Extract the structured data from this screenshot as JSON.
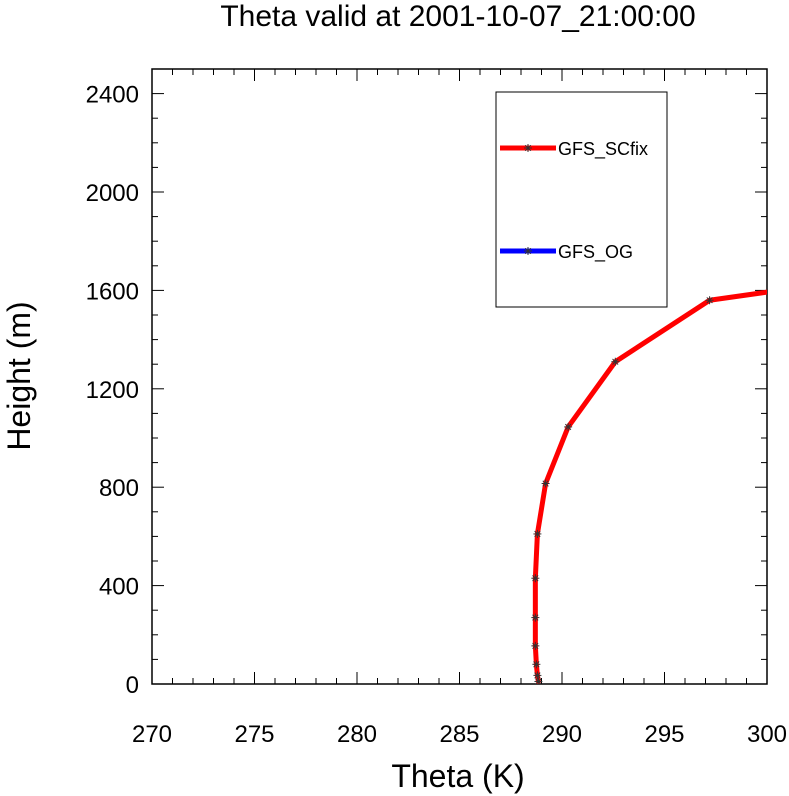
{
  "chart_data": {
    "type": "line",
    "title": "Theta valid at 2001-10-07_21:00:00",
    "xlabel": "Theta (K)",
    "ylabel": "Height (m)",
    "xlim": [
      270,
      300
    ],
    "ylim": [
      0,
      2500
    ],
    "x_ticks": [
      270,
      275,
      280,
      285,
      290,
      295,
      300
    ],
    "y_ticks": [
      0,
      400,
      800,
      1200,
      1600,
      2000,
      2400
    ],
    "legend_position": "top-right",
    "grid": false,
    "series": [
      {
        "name": "GFS_SCfix",
        "color": "#ff0000",
        "marker": "asterisk",
        "x": [
          288.85,
          288.8,
          288.75,
          288.7,
          288.7,
          288.7,
          288.8,
          289.2,
          290.3,
          292.6,
          297.2,
          300.6
        ],
        "y": [
          10,
          35,
          80,
          155,
          270,
          430,
          610,
          815,
          1045,
          1310,
          1560,
          1600
        ]
      },
      {
        "name": "GFS_OG",
        "color": "#0000ff",
        "marker": "asterisk",
        "x": [],
        "y": []
      }
    ]
  }
}
